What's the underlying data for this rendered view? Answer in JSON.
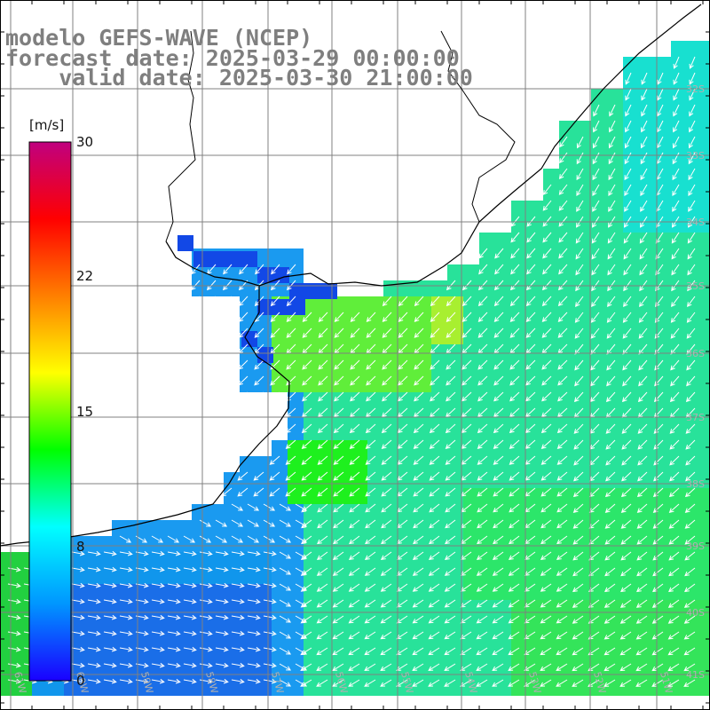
{
  "title": {
    "model": "modelo GEFS-WAVE (NCEP)",
    "forecast_date": "forecast date: 2025-03-29 00:00:00",
    "valid_date": "    valid date: 2025-03-30 21:00:00"
  },
  "colorbar": {
    "unit": "[m/s]",
    "ticks": [
      "30",
      "22",
      "15",
      "8",
      "0"
    ],
    "tick_values": [
      30,
      22,
      15,
      8,
      0
    ],
    "colors": [
      "#1a00ff",
      "#0096ff",
      "#00ffff",
      "#00ff00",
      "#ffff00",
      "#ff7f00",
      "#ff0000",
      "#c0007f"
    ]
  },
  "lat_labels": [
    "32S",
    "33S",
    "34S",
    "35S",
    "36S",
    "37S",
    "38S",
    "39S",
    "40S",
    "41S"
  ],
  "lon_labels": [
    "61W",
    "60W",
    "59W",
    "58W",
    "57W",
    "56W",
    "55W",
    "54W",
    "53W",
    "52W",
    "51W"
  ],
  "grid_color": "#808080"
}
